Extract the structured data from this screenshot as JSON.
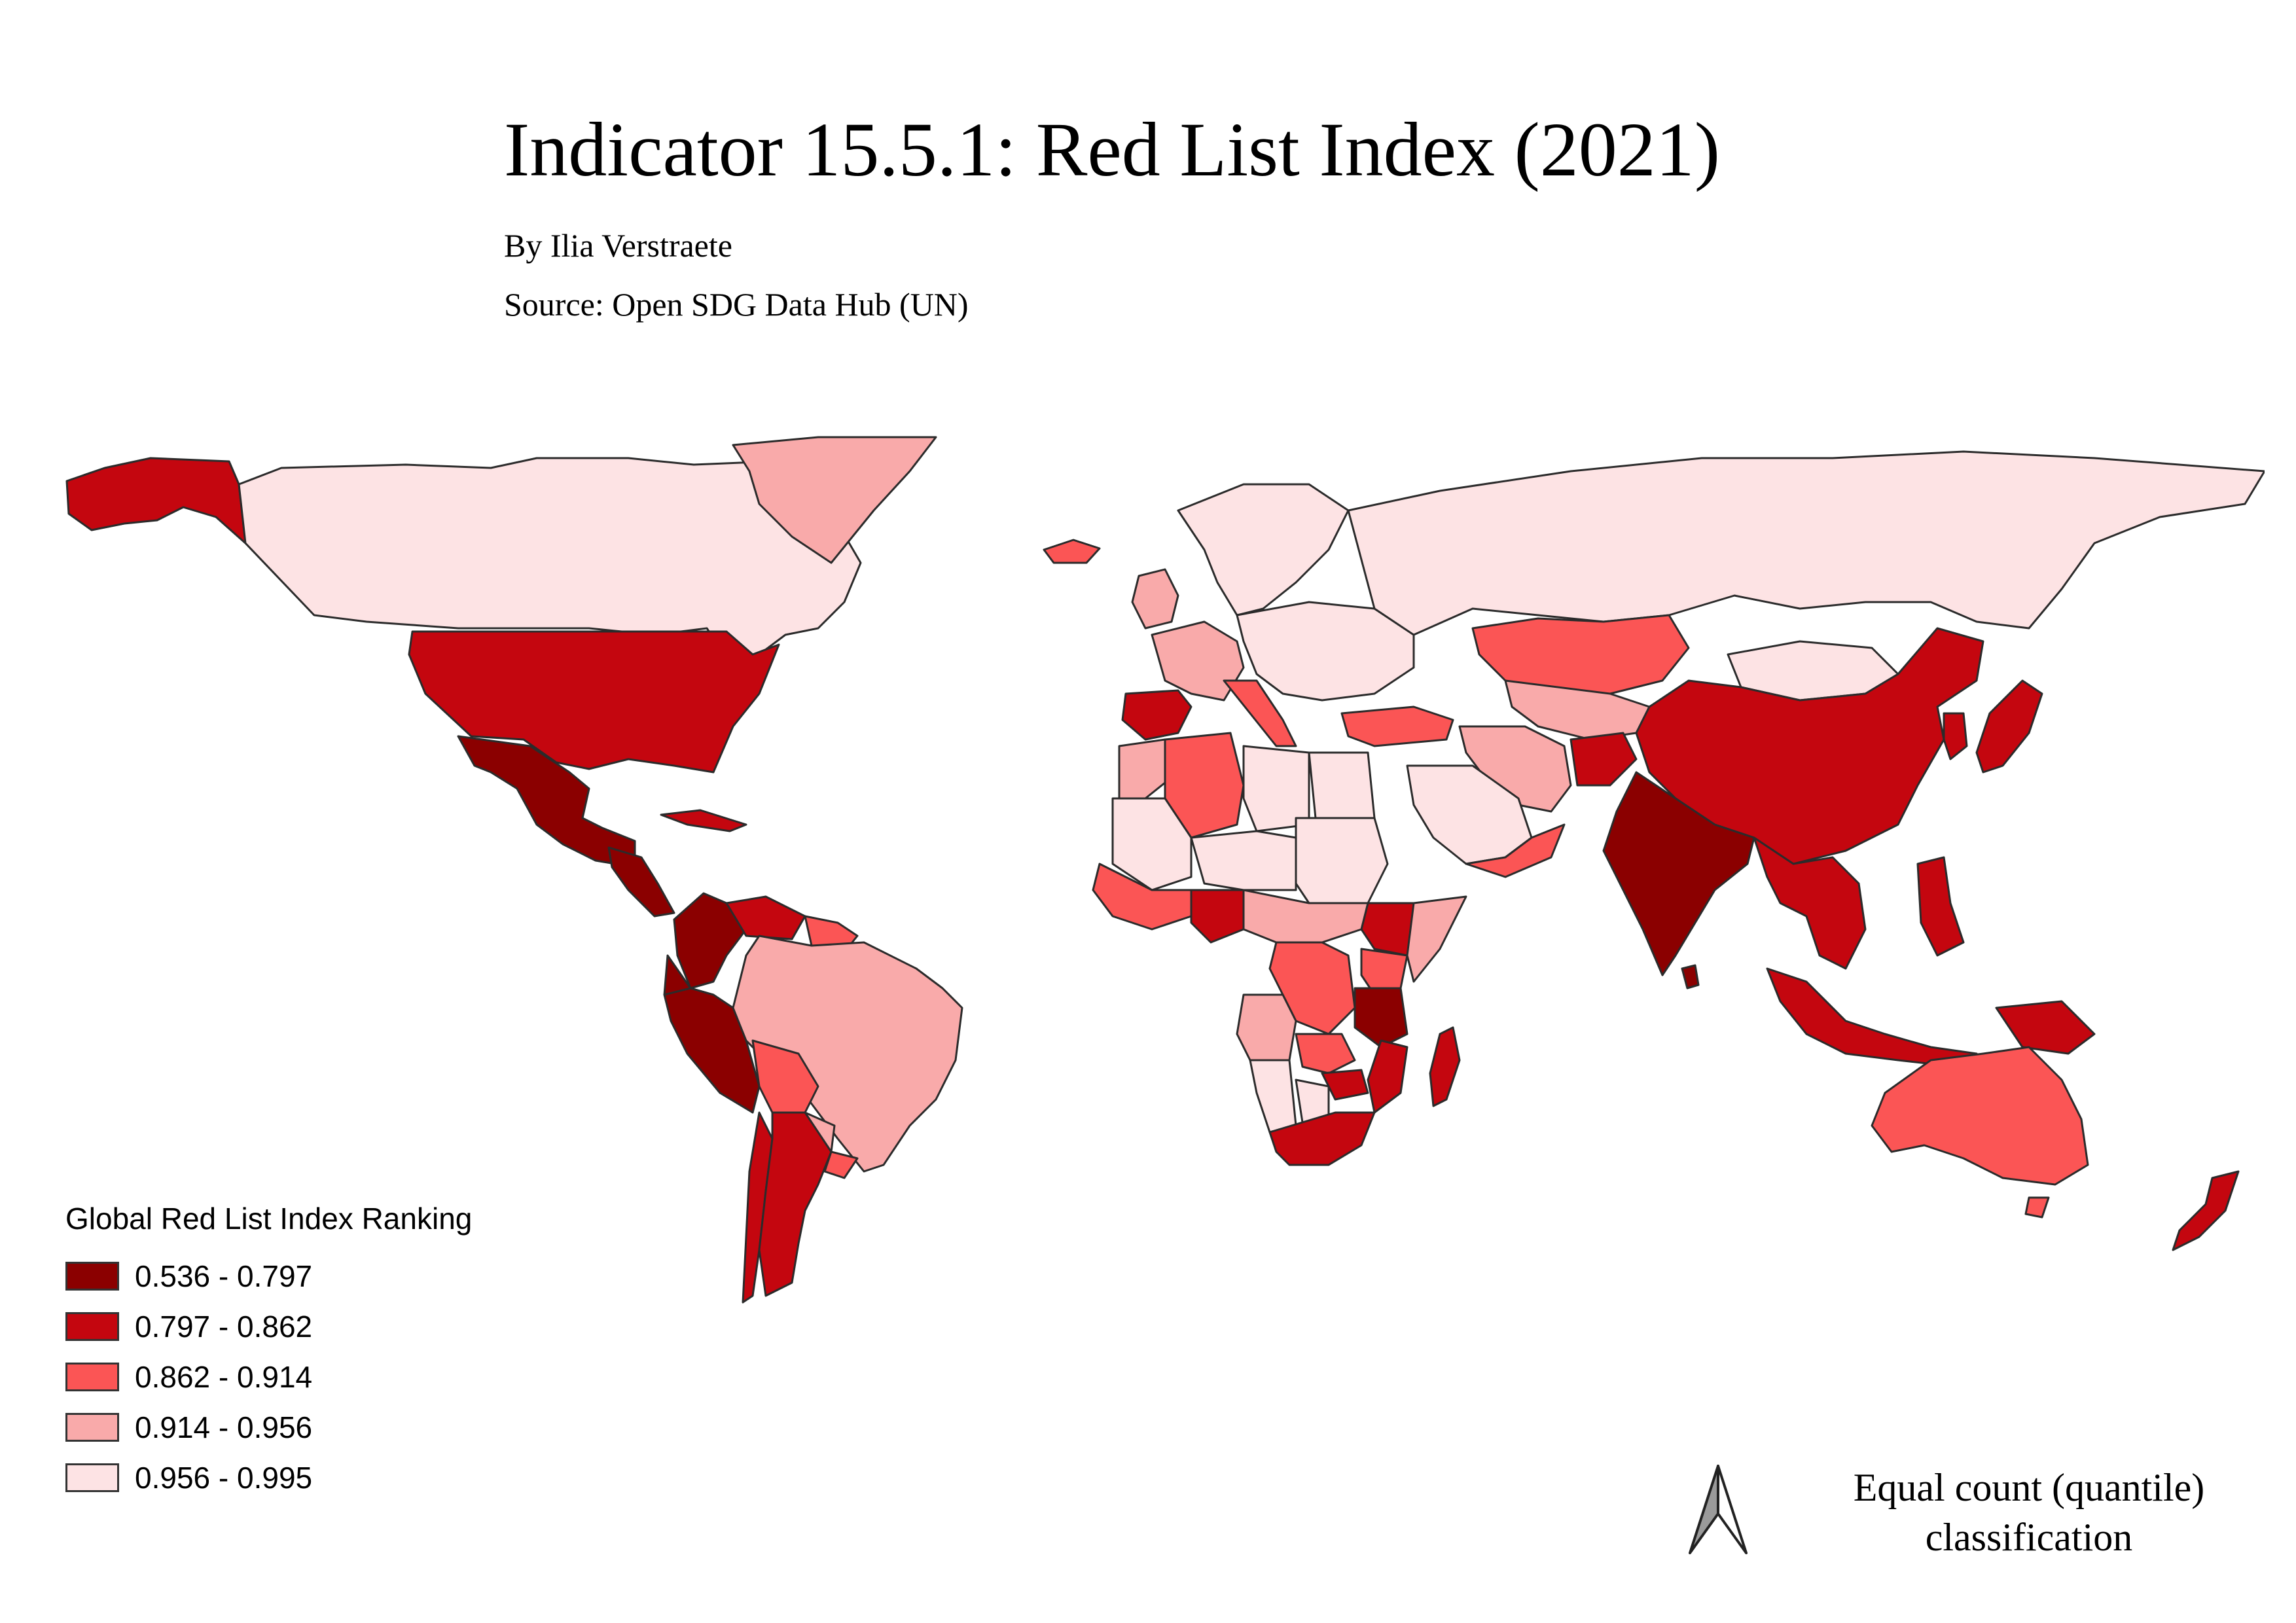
{
  "title": "Indicator 15.5.1: Red List Index (2021)",
  "author": "By Ilia Verstraete",
  "source": "Source: Open SDG Data Hub (UN)",
  "legend": {
    "title": "Global Red List Index Ranking",
    "classes": [
      {
        "label": "0.536 - 0.797",
        "color": "#8b0000"
      },
      {
        "label": "0.797 - 0.862",
        "color": "#c4060f"
      },
      {
        "label": "0.862 - 0.914",
        "color": "#fb5555"
      },
      {
        "label": "0.914 - 0.956",
        "color": "#f9aaaa"
      },
      {
        "label": "0.956 - 0.995",
        "color": "#fde3e4"
      }
    ]
  },
  "north_arrow_icon": "north-arrow-icon",
  "classification_note_line1": "Equal count (quantile)",
  "classification_note_line2": "classification",
  "map": {
    "background": "#ffffff",
    "border_color": "#2b2b2b",
    "regions": [
      {
        "name": "Alaska",
        "class": 1
      },
      {
        "name": "Canada",
        "class": 4
      },
      {
        "name": "Greenland",
        "class": 3
      },
      {
        "name": "Iceland",
        "class": 2
      },
      {
        "name": "United States",
        "class": 1
      },
      {
        "name": "Mexico",
        "class": 0
      },
      {
        "name": "Central America",
        "class": 0
      },
      {
        "name": "Cuba",
        "class": 1
      },
      {
        "name": "Colombia",
        "class": 0
      },
      {
        "name": "Venezuela",
        "class": 1
      },
      {
        "name": "Guyana",
        "class": 2
      },
      {
        "name": "Ecuador",
        "class": 0
      },
      {
        "name": "Peru",
        "class": 0
      },
      {
        "name": "Brazil",
        "class": 3
      },
      {
        "name": "Bolivia",
        "class": 2
      },
      {
        "name": "Paraguay",
        "class": 3
      },
      {
        "name": "Chile",
        "class": 1
      },
      {
        "name": "Argentina",
        "class": 1
      },
      {
        "name": "Uruguay",
        "class": 2
      },
      {
        "name": "Scandinavia",
        "class": 4
      },
      {
        "name": "United Kingdom",
        "class": 3
      },
      {
        "name": "Western Europe",
        "class": 3
      },
      {
        "name": "Spain",
        "class": 1
      },
      {
        "name": "Italy",
        "class": 2
      },
      {
        "name": "Eastern Europe",
        "class": 4
      },
      {
        "name": "Turkey",
        "class": 2
      },
      {
        "name": "Russia",
        "class": 4
      },
      {
        "name": "Kazakhstan",
        "class": 2
      },
      {
        "name": "Central Asia",
        "class": 3
      },
      {
        "name": "Iran",
        "class": 3
      },
      {
        "name": "Afghanistan",
        "class": 1
      },
      {
        "name": "Saudi Arabia",
        "class": 4
      },
      {
        "name": "Yemen Oman",
        "class": 2
      },
      {
        "name": "Mongolia",
        "class": 4
      },
      {
        "name": "China",
        "class": 1
      },
      {
        "name": "Korea",
        "class": 1
      },
      {
        "name": "Japan",
        "class": 1
      },
      {
        "name": "India",
        "class": 0
      },
      {
        "name": "Sri Lanka",
        "class": 0
      },
      {
        "name": "Southeast Asia",
        "class": 1
      },
      {
        "name": "Philippines",
        "class": 1
      },
      {
        "name": "Indonesia",
        "class": 1
      },
      {
        "name": "Papua New Guinea",
        "class": 1
      },
      {
        "name": "Australia",
        "class": 2
      },
      {
        "name": "Tasmania",
        "class": 2
      },
      {
        "name": "New Zealand",
        "class": 1
      },
      {
        "name": "Morocco",
        "class": 3
      },
      {
        "name": "Algeria",
        "class": 2
      },
      {
        "name": "Libya",
        "class": 4
      },
      {
        "name": "Egypt",
        "class": 4
      },
      {
        "name": "Mauritania Mali",
        "class": 4
      },
      {
        "name": "Niger Chad",
        "class": 4
      },
      {
        "name": "Sudan",
        "class": 4
      },
      {
        "name": "West Africa Coast",
        "class": 2
      },
      {
        "name": "Nigeria",
        "class": 1
      },
      {
        "name": "Ethiopia",
        "class": 1
      },
      {
        "name": "Somalia",
        "class": 3
      },
      {
        "name": "Central Africa",
        "class": 3
      },
      {
        "name": "DR Congo",
        "class": 2
      },
      {
        "name": "Kenya",
        "class": 2
      },
      {
        "name": "Tanzania",
        "class": 0
      },
      {
        "name": "Angola",
        "class": 3
      },
      {
        "name": "Zambia",
        "class": 2
      },
      {
        "name": "Mozambique",
        "class": 1
      },
      {
        "name": "Zimbabwe",
        "class": 1
      },
      {
        "name": "Namibia",
        "class": 4
      },
      {
        "name": "Botswana",
        "class": 4
      },
      {
        "name": "South Africa",
        "class": 1
      },
      {
        "name": "Madagascar",
        "class": 1
      }
    ]
  }
}
